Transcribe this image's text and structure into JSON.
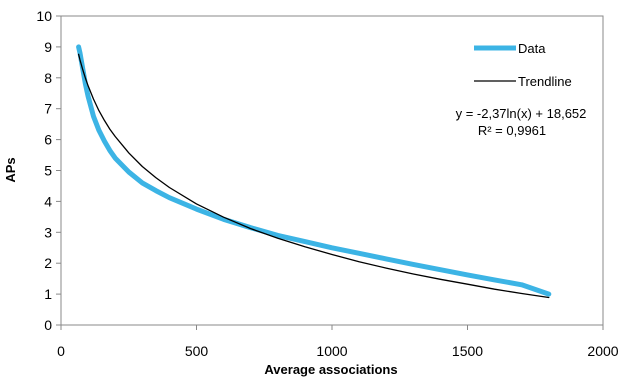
{
  "chart_data": {
    "type": "line",
    "xlabel": "Average associations",
    "ylabel": "APs",
    "xlim": [
      0,
      2000
    ],
    "ylim": [
      0,
      10
    ],
    "xticks": [
      "0",
      "500",
      "1000",
      "1500",
      "2000"
    ],
    "yticks": [
      "0",
      "1",
      "2",
      "3",
      "4",
      "5",
      "6",
      "7",
      "8",
      "9",
      "10"
    ],
    "xtick_values": [
      0,
      500,
      1000,
      1500,
      2000
    ],
    "ytick_values": [
      0,
      1,
      2,
      3,
      4,
      5,
      6,
      7,
      8,
      9,
      10
    ],
    "grid": false,
    "legend_position": "top-right",
    "series": [
      {
        "name": "Data",
        "color": "#3cb4e5",
        "x": [
          65,
          70,
          80,
          90,
          100,
          120,
          140,
          160,
          180,
          200,
          250,
          300,
          350,
          400,
          500,
          600,
          700,
          800,
          900,
          1000,
          1100,
          1200,
          1300,
          1400,
          1500,
          1600,
          1700,
          1800
        ],
        "y": [
          9.0,
          8.8,
          8.3,
          7.8,
          7.4,
          6.75,
          6.3,
          5.95,
          5.65,
          5.4,
          4.95,
          4.6,
          4.35,
          4.12,
          3.75,
          3.42,
          3.15,
          2.9,
          2.7,
          2.5,
          2.32,
          2.14,
          1.96,
          1.79,
          1.62,
          1.46,
          1.3,
          1.0
        ]
      },
      {
        "name": "Trendline",
        "color": "#000000",
        "x": [
          65,
          70,
          80,
          90,
          100,
          120,
          140,
          160,
          180,
          200,
          250,
          300,
          350,
          400,
          500,
          600,
          700,
          800,
          900,
          1000,
          1100,
          1200,
          1300,
          1400,
          1500,
          1600,
          1700,
          1800
        ],
        "y": [
          8.76,
          8.58,
          8.27,
          7.99,
          7.74,
          7.31,
          6.94,
          6.62,
          6.34,
          6.1,
          5.57,
          5.13,
          4.77,
          4.45,
          3.92,
          3.49,
          3.12,
          2.81,
          2.53,
          2.28,
          2.05,
          1.84,
          1.65,
          1.48,
          1.32,
          1.16,
          1.02,
          0.89
        ]
      }
    ],
    "annotations": {
      "equation": "y = -2,37ln(x) + 18,652",
      "r2": "R² = 0,9961"
    }
  }
}
